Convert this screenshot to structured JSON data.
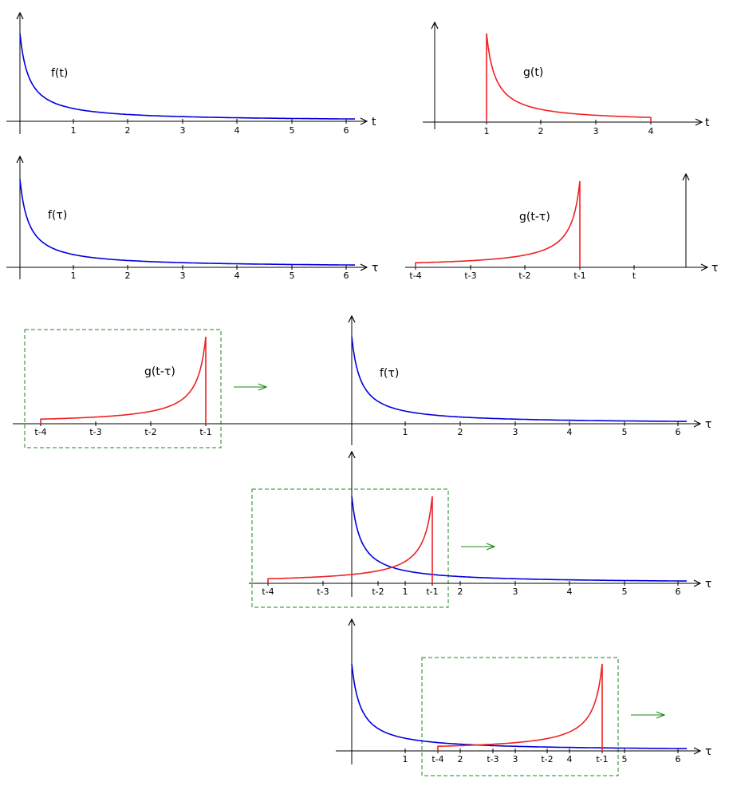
{
  "panels": [
    {
      "id": "f-of-t",
      "axis_name": "t",
      "curve_label": "f(t)",
      "ticks": [
        "1",
        "2",
        "3",
        "4",
        "5",
        "6"
      ]
    },
    {
      "id": "g-of-t",
      "axis_name": "t",
      "curve_label": "g(t)",
      "ticks": [
        "1",
        "2",
        "3",
        "4"
      ]
    },
    {
      "id": "f-of-tau",
      "axis_name": "τ",
      "curve_label": "f(τ)",
      "ticks": [
        "1",
        "2",
        "3",
        "4",
        "5",
        "6"
      ]
    },
    {
      "id": "g-of-t-minus-tau",
      "axis_name": "τ",
      "curve_label": "g(t-τ)",
      "ticks": [
        "t-4",
        "t-3",
        "t-2",
        "t-1",
        "t"
      ]
    },
    {
      "id": "sliding-stage-1",
      "axis_name": "τ",
      "f_label": "f(τ)",
      "g_label": "g(t-τ)",
      "f_ticks": [
        "1",
        "2",
        "3",
        "4",
        "5",
        "6"
      ],
      "g_ticks": [
        "t-4",
        "t-3",
        "t-2",
        "t-1"
      ]
    },
    {
      "id": "sliding-stage-2",
      "axis_name": "τ",
      "f_ticks": [
        "1",
        "2",
        "3",
        "4",
        "5",
        "6"
      ],
      "g_ticks": [
        "t-4",
        "t-3",
        "t-2",
        "t-1"
      ]
    },
    {
      "id": "sliding-stage-3",
      "axis_name": "τ",
      "f_ticks": [
        "1",
        "2",
        "3",
        "4",
        "5",
        "6"
      ],
      "g_ticks": [
        "t-4",
        "t-3",
        "t-2",
        "t-1"
      ]
    }
  ],
  "colors": {
    "f_curve": "#0000dd",
    "g_curve": "#ee2222",
    "window_box": "#1a8a1a",
    "arrow": "#1a8a1a",
    "axis": "#000000"
  }
}
